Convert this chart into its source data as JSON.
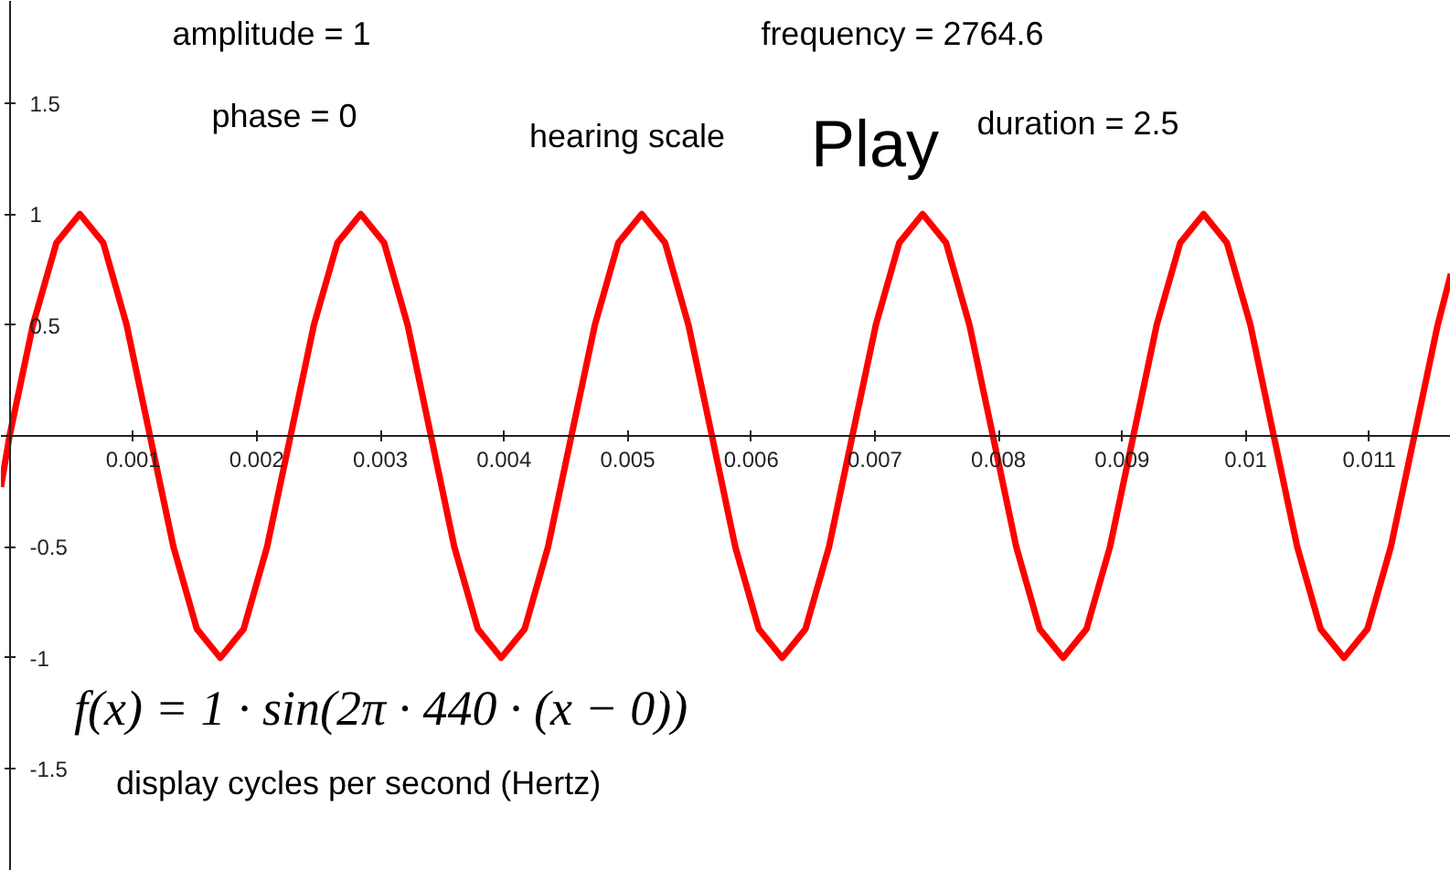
{
  "chart_data": {
    "type": "line",
    "x": [
      -7e-05,
      0,
      0.000189,
      0.000379,
      0.000568,
      0.000758,
      0.000947,
      0.001136,
      0.001326,
      0.001515,
      0.001705,
      0.001894,
      0.002083,
      0.002273,
      0.002462,
      0.002652,
      0.002841,
      0.00303,
      0.00322,
      0.003409,
      0.003598,
      0.003788,
      0.003977,
      0.004167,
      0.004356,
      0.004545,
      0.004735,
      0.004924,
      0.005114,
      0.005303,
      0.005492,
      0.005682,
      0.005871,
      0.006061,
      0.00625,
      0.006439,
      0.006629,
      0.006818,
      0.007008,
      0.007197,
      0.007386,
      0.007576,
      0.007765,
      0.007955,
      0.008144,
      0.008333,
      0.008523,
      0.008712,
      0.008902,
      0.009091,
      0.00928,
      0.00947,
      0.009659,
      0.009848,
      0.010038,
      0.010227,
      0.010417,
      0.010606,
      0.010795,
      0.010985,
      0.011174,
      0.011364,
      0.011553,
      0.01166
    ],
    "series": [
      {
        "color": "#ff0000",
        "values": [
          -0.23,
          0,
          0.5,
          0.87,
          1,
          0.87,
          0.5,
          0,
          -0.5,
          -0.87,
          -1,
          -0.87,
          -0.5,
          0,
          0.5,
          0.87,
          1,
          0.87,
          0.5,
          0,
          -0.5,
          -0.87,
          -1,
          -0.87,
          -0.5,
          0,
          0.5,
          0.87,
          1,
          0.87,
          0.5,
          0,
          -0.5,
          -0.87,
          -1,
          -0.87,
          -0.5,
          0,
          0.5,
          0.87,
          1,
          0.87,
          0.5,
          0,
          -0.5,
          -0.87,
          -1,
          -0.87,
          -0.5,
          0,
          0.5,
          0.87,
          1,
          0.87,
          0.5,
          0,
          -0.5,
          -0.87,
          -1,
          -0.87,
          -0.5,
          0,
          0.5,
          0.73
        ]
      }
    ],
    "xlim": [
      -7e-05,
      0.01166
    ],
    "ylim": [
      -1.96,
      1.96
    ],
    "xticks": [
      0.001,
      0.002,
      0.003,
      0.004,
      0.005,
      0.006,
      0.007,
      0.008,
      0.009,
      0.01,
      0.011
    ],
    "yticks": [
      -1.5,
      -1,
      -0.5,
      0.5,
      1,
      1.5
    ],
    "grid": false,
    "marker": "none",
    "line_style": "solid",
    "annotations": [
      "amplitude = 1",
      "frequency = 2764.6",
      "phase = 0",
      "hearing scale",
      "Play",
      "duration = 2.5",
      "f(x) = 1 · sin(2π · 440 · (x − 0))",
      "display cycles per second (Hertz)"
    ]
  }
}
